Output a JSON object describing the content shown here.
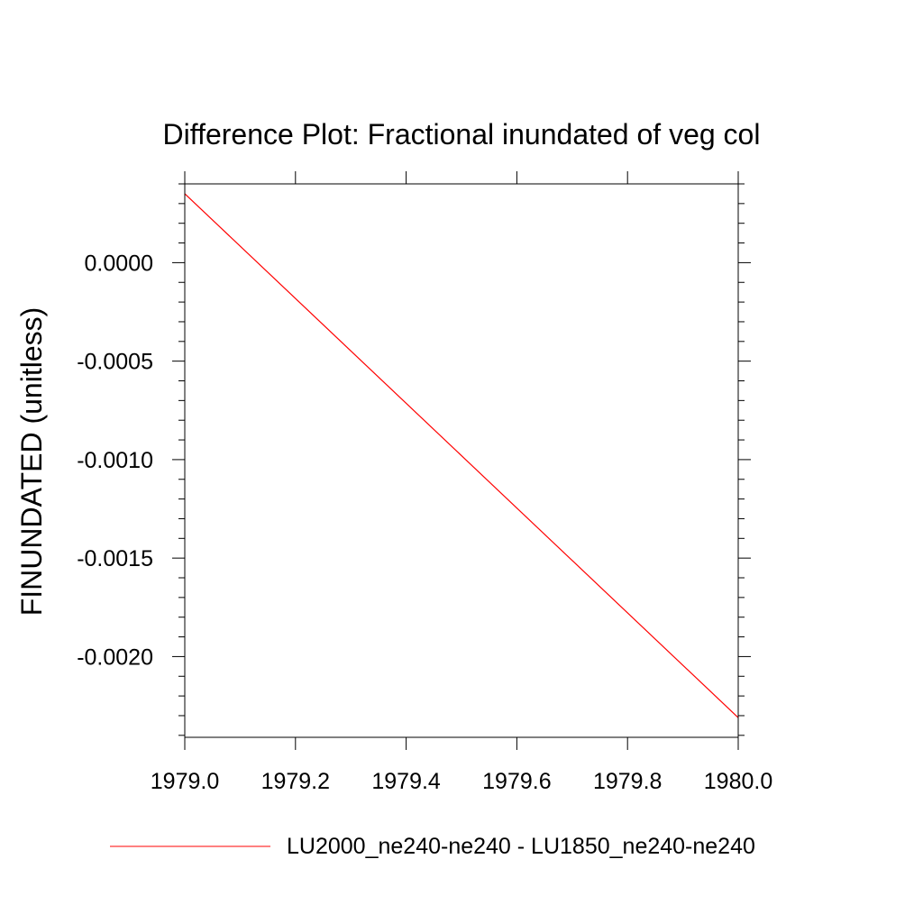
{
  "chart_data": {
    "type": "line",
    "title": "Difference Plot: Fractional inundated of veg col",
    "xlabel": "",
    "ylabel": "FINUNDATED  (unitless)",
    "xlim": [
      1979.0,
      1980.0
    ],
    "ylim": [
      -0.00241,
      0.0004
    ],
    "x_ticks": [
      1979.0,
      1979.2,
      1979.4,
      1979.6,
      1979.8,
      1980.0
    ],
    "x_tick_labels": [
      "1979.0",
      "1979.2",
      "1979.4",
      "1979.6",
      "1979.8",
      "1980.0"
    ],
    "y_ticks": [
      0.0,
      -0.0005,
      -0.001,
      -0.0015,
      -0.002
    ],
    "y_tick_labels": [
      "0.0000",
      "-0.0005",
      "-0.0010",
      "-0.0015",
      "-0.0020"
    ],
    "grid": false,
    "legend_position": "bottom",
    "series": [
      {
        "name": "LU2000_ne240-ne240 - LU1850_ne240-ne240",
        "color": "#ff0000",
        "x": [
          1979.0,
          1980.0
        ],
        "y": [
          0.00035,
          -0.00231
        ]
      }
    ]
  }
}
